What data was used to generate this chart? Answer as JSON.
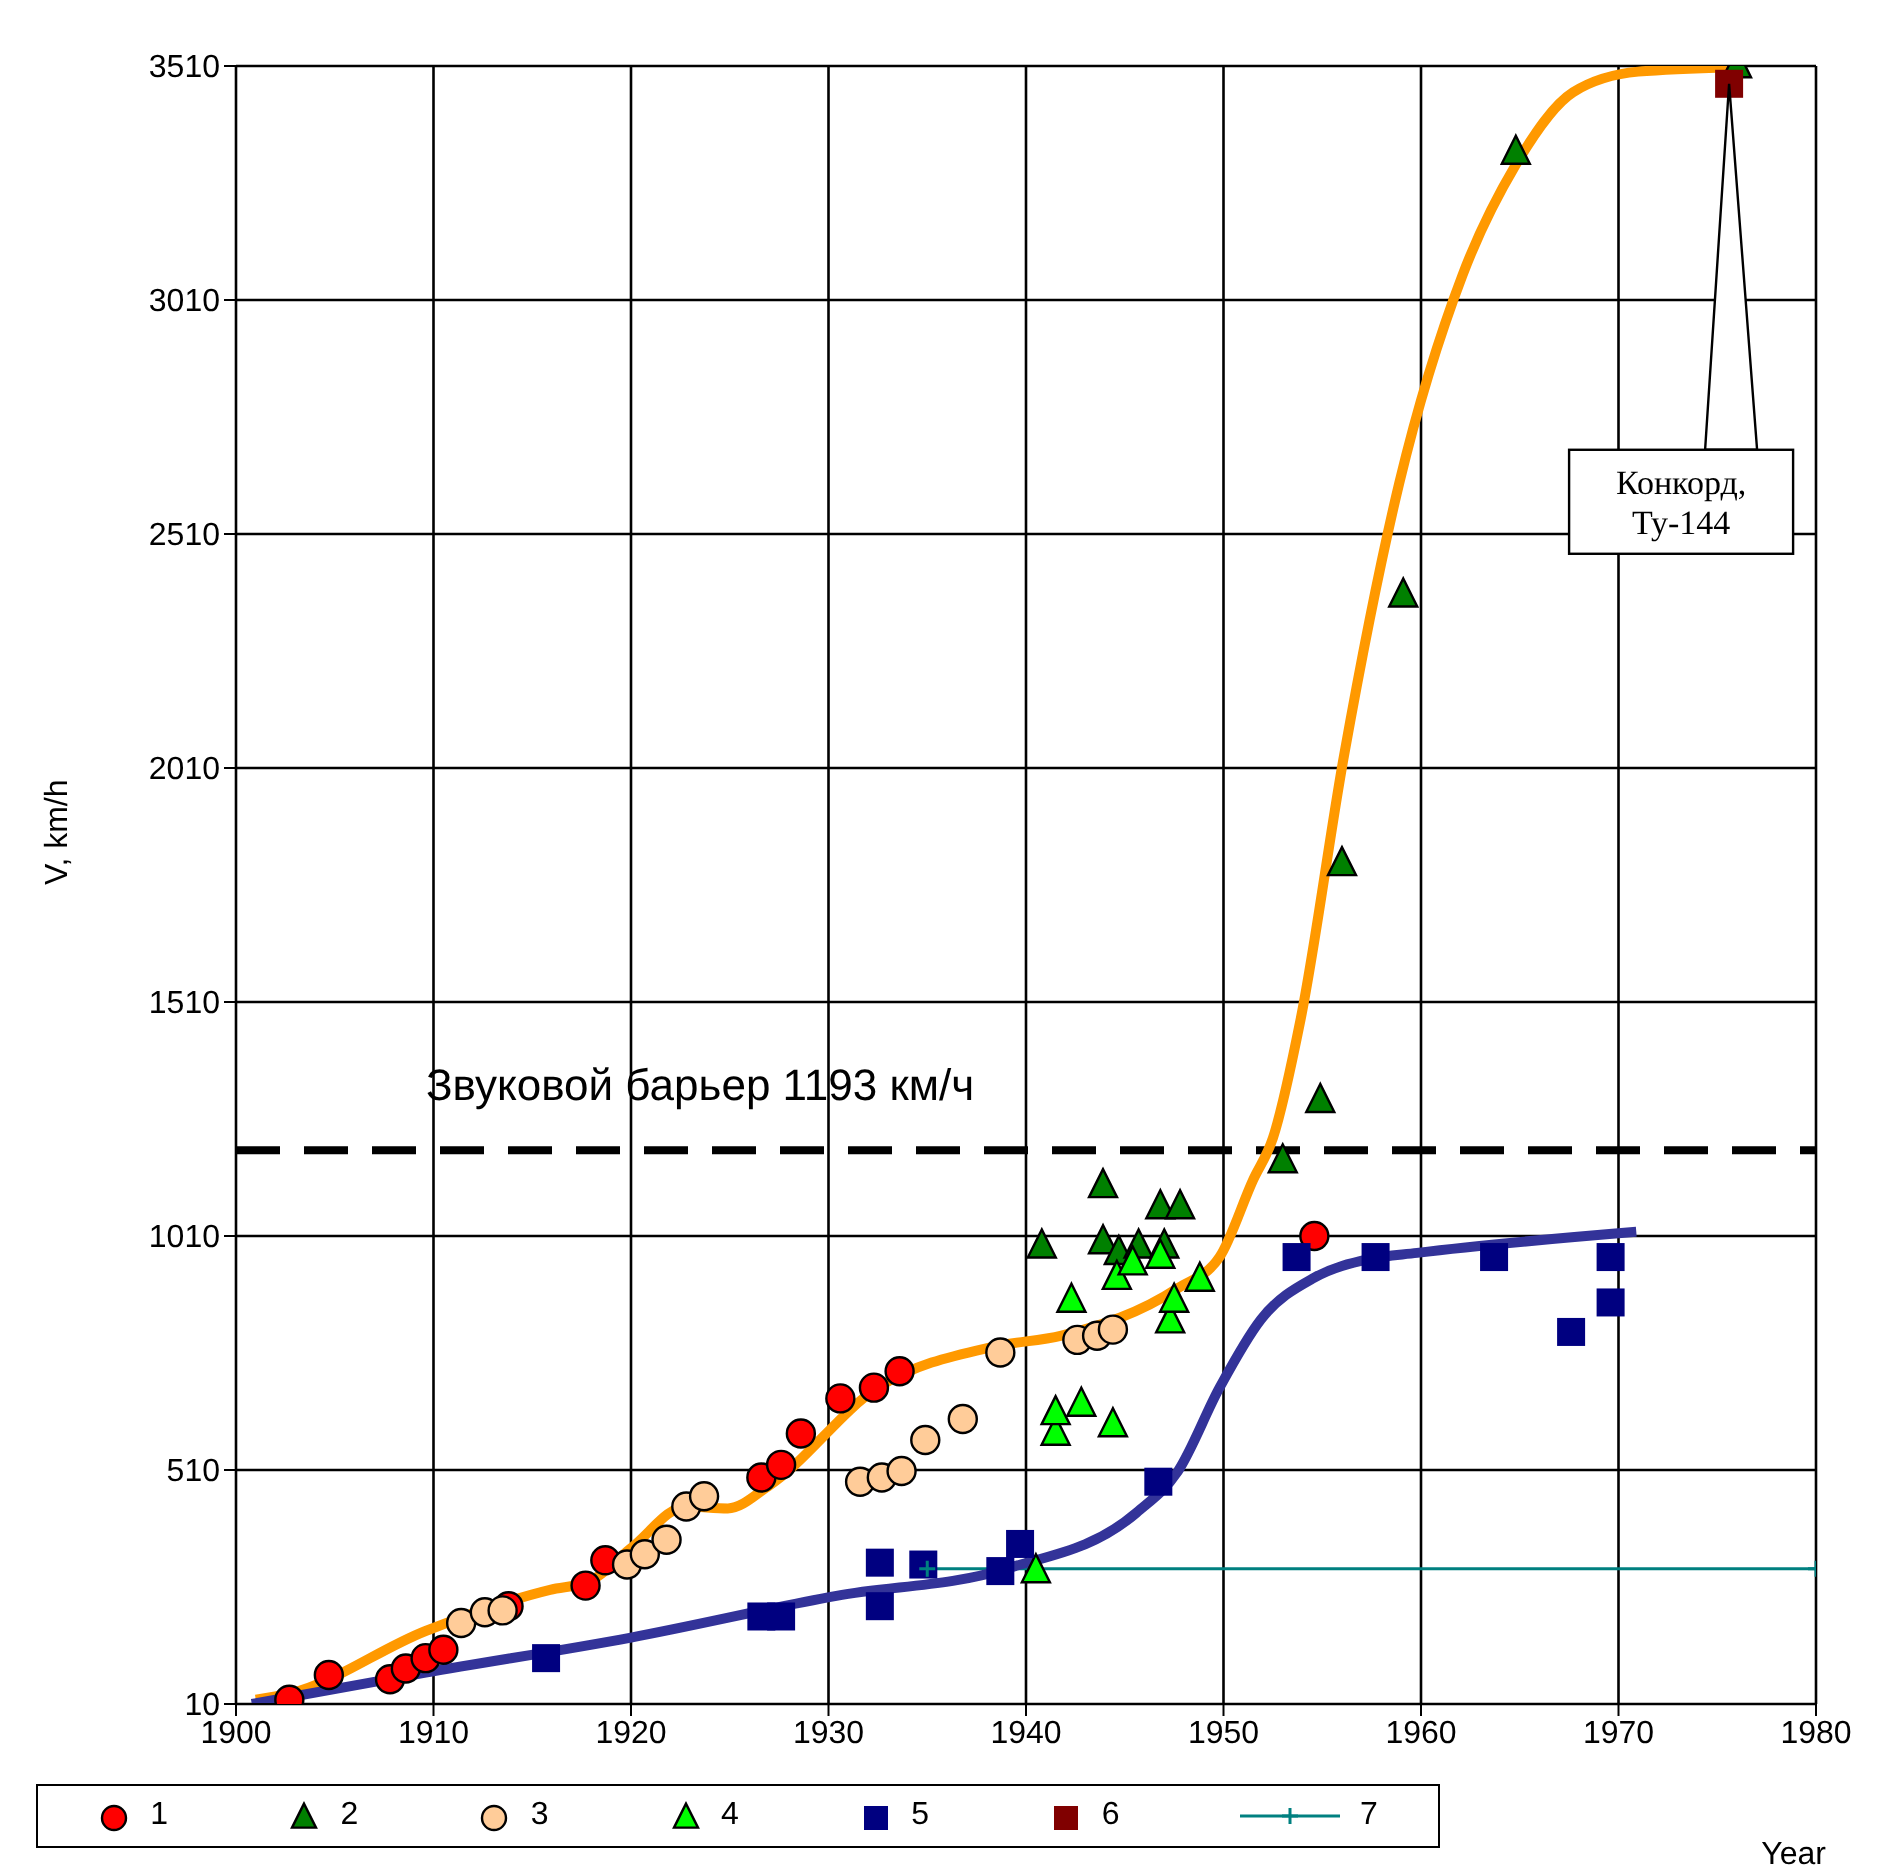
{
  "chart_data": {
    "type": "scatter",
    "xlabel": "Year",
    "ylabel": "V, km/h",
    "xlim": [
      1900,
      1980
    ],
    "xticks": [
      1900,
      1910,
      1920,
      1930,
      1940,
      1950,
      1960,
      1970,
      1980
    ],
    "ylim": [
      10,
      3510
    ],
    "yticks": [
      10,
      510,
      1010,
      1510,
      2010,
      2510,
      3010,
      3510
    ],
    "grid": true,
    "legend": "bottom",
    "ref_lines": [
      {
        "axis": "y",
        "value": 1193,
        "label": "Звуковой барьер 1193 км/ч",
        "color": "#000000",
        "line_style": "dashed"
      }
    ],
    "annotations": [
      {
        "text": "Конкорд,\nТу-144",
        "x": 1975.6,
        "y": 3472
      }
    ],
    "series": [
      {
        "name": "1",
        "type": "scatter",
        "marker": "circle",
        "color": "#ff0000",
        "x": [
          1902.7,
          1904.7,
          1907.8,
          1908.6,
          1909.6,
          1910.5,
          1913.8,
          1917.7,
          1918.7,
          1926.6,
          1927.6,
          1928.6,
          1930.6,
          1932.3,
          1933.6,
          1954.6
        ],
        "values": [
          19,
          72,
          63,
          86,
          108,
          126,
          219,
          263,
          317,
          494,
          521,
          588,
          663,
          686,
          721,
          1010
        ]
      },
      {
        "name": "2",
        "type": "scatter",
        "marker": "triangle",
        "color": "#008000",
        "x": [
          1940.8,
          1943.9,
          1943.9,
          1944.7,
          1945.7,
          1946.8,
          1947.0,
          1947.8,
          1953.0,
          1954.9,
          1956.0,
          1959.1,
          1964.8,
          1976.0
        ],
        "values": [
          988,
          1117,
          997,
          974,
          988,
          1072,
          988,
          1072,
          1170,
          1299,
          1805,
          2379,
          3325,
          3510
        ]
      },
      {
        "name": "3",
        "type": "scatter",
        "marker": "circle",
        "color": "#ffcc99",
        "x": [
          1911.4,
          1912.6,
          1913.5,
          1919.8,
          1920.7,
          1921.8,
          1922.8,
          1923.7,
          1931.6,
          1932.7,
          1933.7,
          1934.9,
          1936.8,
          1938.7,
          1942.6,
          1943.6,
          1944.4
        ],
        "values": [
          183,
          206,
          210,
          308,
          330,
          361,
          432,
          454,
          485,
          494,
          508,
          574,
          619,
          761,
          788,
          797,
          810
        ]
      },
      {
        "name": "4",
        "type": "scatter",
        "marker": "triangle",
        "color": "#00ff00",
        "x": [
          1940.5,
          1941.5,
          1941.5,
          1942.3,
          1942.8,
          1944.4,
          1944.6,
          1945.4,
          1946.8,
          1947.3,
          1947.5,
          1948.8
        ],
        "values": [
          294,
          588,
          632,
          872,
          650,
          606,
          921,
          952,
          966,
          828,
          872,
          917
        ]
      },
      {
        "name": "5",
        "type": "scatter",
        "marker": "square",
        "color": "#000080",
        "x": [
          1915.7,
          1926.6,
          1927.6,
          1932.6,
          1932.6,
          1934.8,
          1938.7,
          1939.7,
          1946.7,
          1953.7,
          1957.7,
          1963.7,
          1967.6,
          1969.6,
          1969.6
        ],
        "values": [
          108,
          197,
          197,
          312,
          219,
          308,
          294,
          352,
          485,
          965,
          965,
          965,
          805,
          868,
          965
        ]
      },
      {
        "name": "6",
        "type": "scatter",
        "marker": "square",
        "color": "#800000",
        "x": [
          1975.6
        ],
        "values": [
          3472
        ]
      },
      {
        "name": "7",
        "type": "line",
        "marker": "cross",
        "color": "#008080",
        "x": [
          1935,
          1980
        ],
        "values": [
          299,
          299
        ]
      },
      {
        "type": "line",
        "marker": "none",
        "color": "#ff9900",
        "x": [
          1901.0,
          1902.7,
          1909.6,
          1915.9,
          1917.9,
          1920.0,
          1922.8,
          1924.9,
          1927.0,
          1932.5,
          1938.4,
          1941.8,
          1947.7,
          1949.8,
          1951.5,
          1952.5,
          1953.9,
          1956.1,
          1958.9,
          1962.1,
          1964.8,
          1967.7,
          1971.0,
          1975.7
        ],
        "values": [
          19,
          32,
          166,
          254,
          272,
          343,
          432,
          428,
          477,
          686,
          774,
          797,
          899,
          965,
          1130,
          1219,
          1472,
          2036,
          2619,
          3063,
          3299,
          3454,
          3498,
          3507
        ]
      },
      {
        "type": "line",
        "marker": "none",
        "color": "#333399",
        "x": [
          1900.8,
          1909.6,
          1920.0,
          1930.4,
          1939.0,
          1945.6,
          1947.7,
          1949.8,
          1951.9,
          1954.6,
          1957.4,
          1959.8,
          1970.9
        ],
        "values": [
          10,
          77,
          152,
          241,
          299,
          419,
          508,
          686,
          832,
          921,
          961,
          974,
          1019
        ]
      }
    ]
  }
}
